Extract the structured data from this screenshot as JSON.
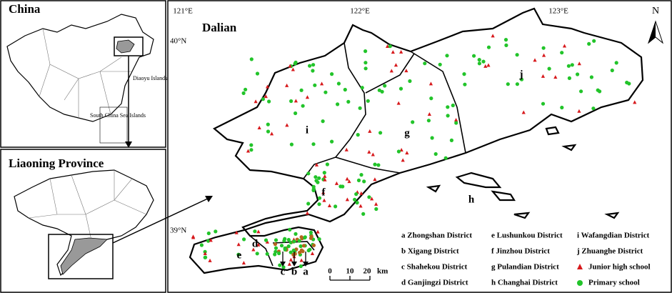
{
  "china": {
    "title": "China",
    "labels": [
      "Diaoyu Islands",
      "South China Sea Islands"
    ]
  },
  "liaoning": {
    "title": "Liaoning Province"
  },
  "dalian": {
    "title": "Dalian",
    "coordinates": {
      "longitude": [
        "121°E",
        "122°E",
        "123°E"
      ],
      "latitude": [
        "40°N",
        "39°N"
      ]
    },
    "north_arrow": "N",
    "district_labels": [
      "i",
      "g",
      "j",
      "f",
      "h",
      "d",
      "e",
      "c",
      "b",
      "a"
    ],
    "scale_bar": {
      "ticks": [
        "0",
        "10",
        "20"
      ],
      "unit": "km"
    },
    "legend": {
      "districts": [
        "a Zhongshan District",
        "b Xigang District",
        "c Shahekou District",
        "d Ganjingzi District",
        "e Lushunkou District",
        "f Jinzhou District",
        "g Pulandian District",
        "h Changhai District",
        "i Wafangdian District",
        "j Zhuanghe District"
      ],
      "symbols": [
        "Junior high school",
        "Primary school"
      ]
    }
  }
}
